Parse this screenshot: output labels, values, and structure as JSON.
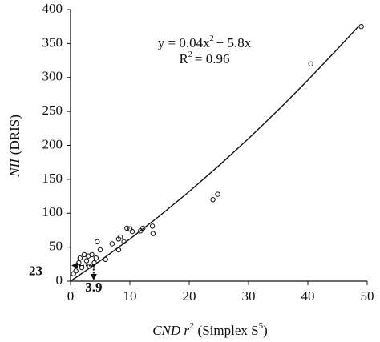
{
  "chart_data": {
    "type": "scatter",
    "xlabel": {
      "main": "CND r",
      "sup": "2",
      "rest": "(Simplex S",
      "sup2": "5",
      "end": ")"
    },
    "ylabel": {
      "main": "NII",
      "rest": "(DRIS)"
    },
    "equation": {
      "main": "y = 0.04x",
      "sup": "2",
      "rest": "+ 5.8x"
    },
    "r2": {
      "main": "R",
      "sup": "2",
      "rest": "= 0.96"
    },
    "xlim": [
      0,
      50
    ],
    "ylim": [
      0,
      400
    ],
    "xticks": [
      0,
      10,
      20,
      30,
      40,
      50
    ],
    "yticks": [
      0,
      50,
      100,
      150,
      200,
      250,
      300,
      350,
      400
    ],
    "series": [
      {
        "name": "observed",
        "color": "#111",
        "x": [
          49,
          40.5,
          24,
          24.8,
          13.8,
          13.9,
          12.2,
          11.8,
          10.4,
          9.5,
          10,
          8.4,
          8.1,
          9,
          8.1,
          7,
          4.5,
          5.9,
          4.3,
          3.6,
          3,
          2.3,
          2.7,
          1.4,
          1.9,
          0.9,
          0.5,
          5,
          4,
          3.2,
          1.6
        ],
        "values": [
          375,
          320,
          120,
          128,
          81,
          70,
          78,
          74,
          73,
          78,
          77,
          65,
          62,
          58,
          46,
          55,
          58,
          32,
          34,
          39,
          37,
          39,
          30,
          27,
          20,
          15,
          11,
          46,
          27,
          22,
          34
        ]
      },
      {
        "name": "fit",
        "color": "#111",
        "x": [
          0,
          5,
          10,
          15,
          20,
          25,
          30,
          35,
          40,
          45,
          48.5
        ],
        "values": [
          0,
          30,
          62,
          96,
          132,
          170,
          210,
          252,
          296,
          342,
          375
        ]
      }
    ],
    "y_marker": 23,
    "x_marker": 3.9
  }
}
